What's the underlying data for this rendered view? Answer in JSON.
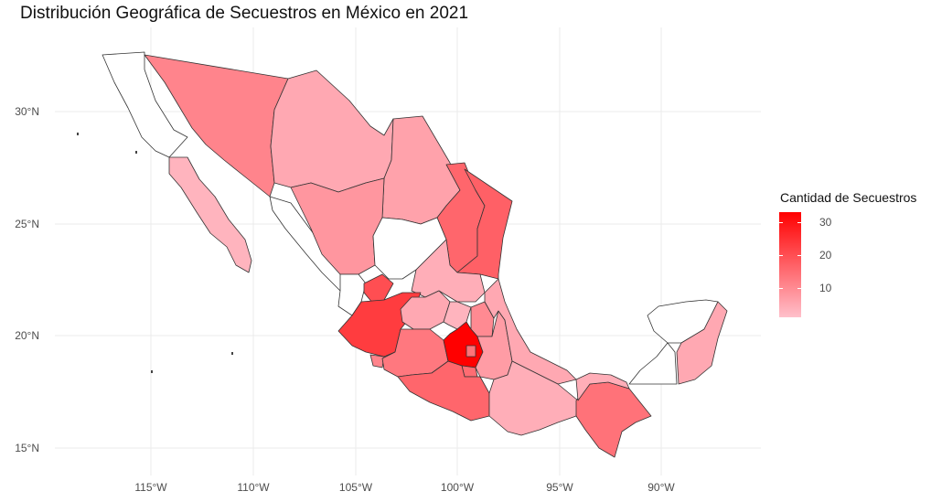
{
  "title": "Distribución Geográfica de Secuestros en México en 2021",
  "x_ticks": [
    "115°W",
    "110°W",
    "105°W",
    "100°W",
    "95°W",
    "90°W"
  ],
  "y_ticks": [
    "30°N",
    "25°N",
    "20°N",
    "15°N"
  ],
  "legend": {
    "title": "Cantidad de Secuestros",
    "ticks": [
      "30",
      "20",
      "10"
    ],
    "low_color": "#ffc0cb",
    "high_color": "#ff0000"
  },
  "chart_data": {
    "type": "choropleth",
    "title": "Distribución Geográfica de Secuestros en México en 2021",
    "legend_title": "Cantidad de Secuestros",
    "scale_range": [
      1,
      33
    ],
    "values": {
      "Baja California": null,
      "Baja California Sur": 3,
      "Sonora": 11,
      "Chihuahua": 5,
      "Coahuila": 6,
      "Nuevo León": 16,
      "Tamaulipas": 17,
      "Sinaloa": null,
      "Durango": 8,
      "Zacatecas": null,
      "Nayarit": null,
      "Aguascalientes": 20,
      "San Luis Potosí": 4,
      "Jalisco": 23,
      "Guanajuato": 5,
      "Querétaro": 3,
      "Hidalgo": 10,
      "Colima": 11,
      "Michoacán": 13,
      "Estado de México": 33,
      "Ciudad de México": 14,
      "Morelos": 15,
      "Tlaxcala": null,
      "Puebla": 7,
      "Veracruz": 5,
      "Guerrero": 16,
      "Oaxaca": 4,
      "Chiapas": 14,
      "Tabasco": 4,
      "Campeche": null,
      "Yucatán": null,
      "Quintana Roo": 5
    }
  }
}
